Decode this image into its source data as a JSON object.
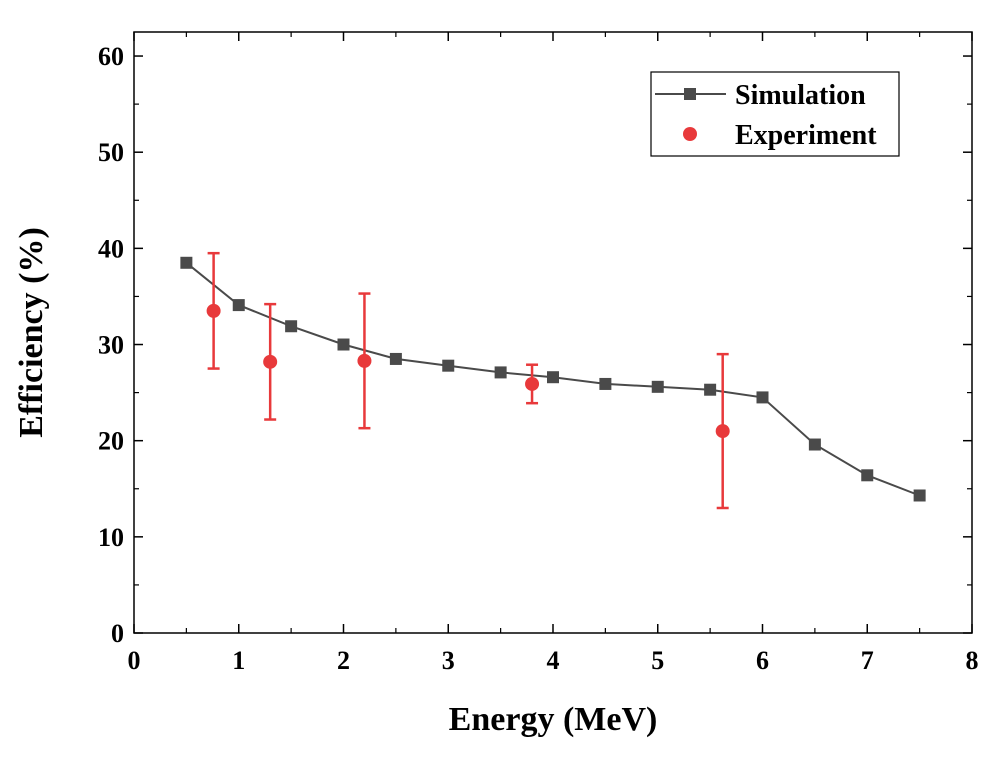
{
  "chart_data": {
    "type": "line",
    "xlabel": "Energy (MeV)",
    "ylabel": "Efficiency (%)",
    "xlim": [
      0,
      8
    ],
    "ylim": [
      0,
      62.5
    ],
    "xticks": [
      0,
      1,
      2,
      3,
      4,
      5,
      6,
      7,
      8
    ],
    "yticks": [
      0,
      10,
      20,
      30,
      40,
      50,
      60
    ],
    "grid": false,
    "legend_position": "top-right",
    "series": [
      {
        "name": "Simulation",
        "kind": "line-square-markers",
        "color": "#4a4a4a",
        "x": [
          0.5,
          1.0,
          1.5,
          2.0,
          2.5,
          3.0,
          3.5,
          4.0,
          4.5,
          5.0,
          5.5,
          6.0,
          6.5,
          7.0,
          7.5
        ],
        "y": [
          38.5,
          34.1,
          31.9,
          30.0,
          28.5,
          27.8,
          27.1,
          26.6,
          25.9,
          25.6,
          25.3,
          24.5,
          19.6,
          16.4,
          14.3
        ]
      },
      {
        "name": "Experiment",
        "kind": "scatter-circle-errorbars",
        "color": "#e8393b",
        "x": [
          0.76,
          1.3,
          2.2,
          3.8,
          5.62
        ],
        "y": [
          33.5,
          28.2,
          28.3,
          25.9,
          21.0
        ],
        "err_low": [
          27.5,
          22.2,
          21.3,
          23.9,
          13.0
        ],
        "err_high": [
          39.5,
          34.2,
          35.3,
          27.9,
          29.0
        ]
      }
    ]
  }
}
